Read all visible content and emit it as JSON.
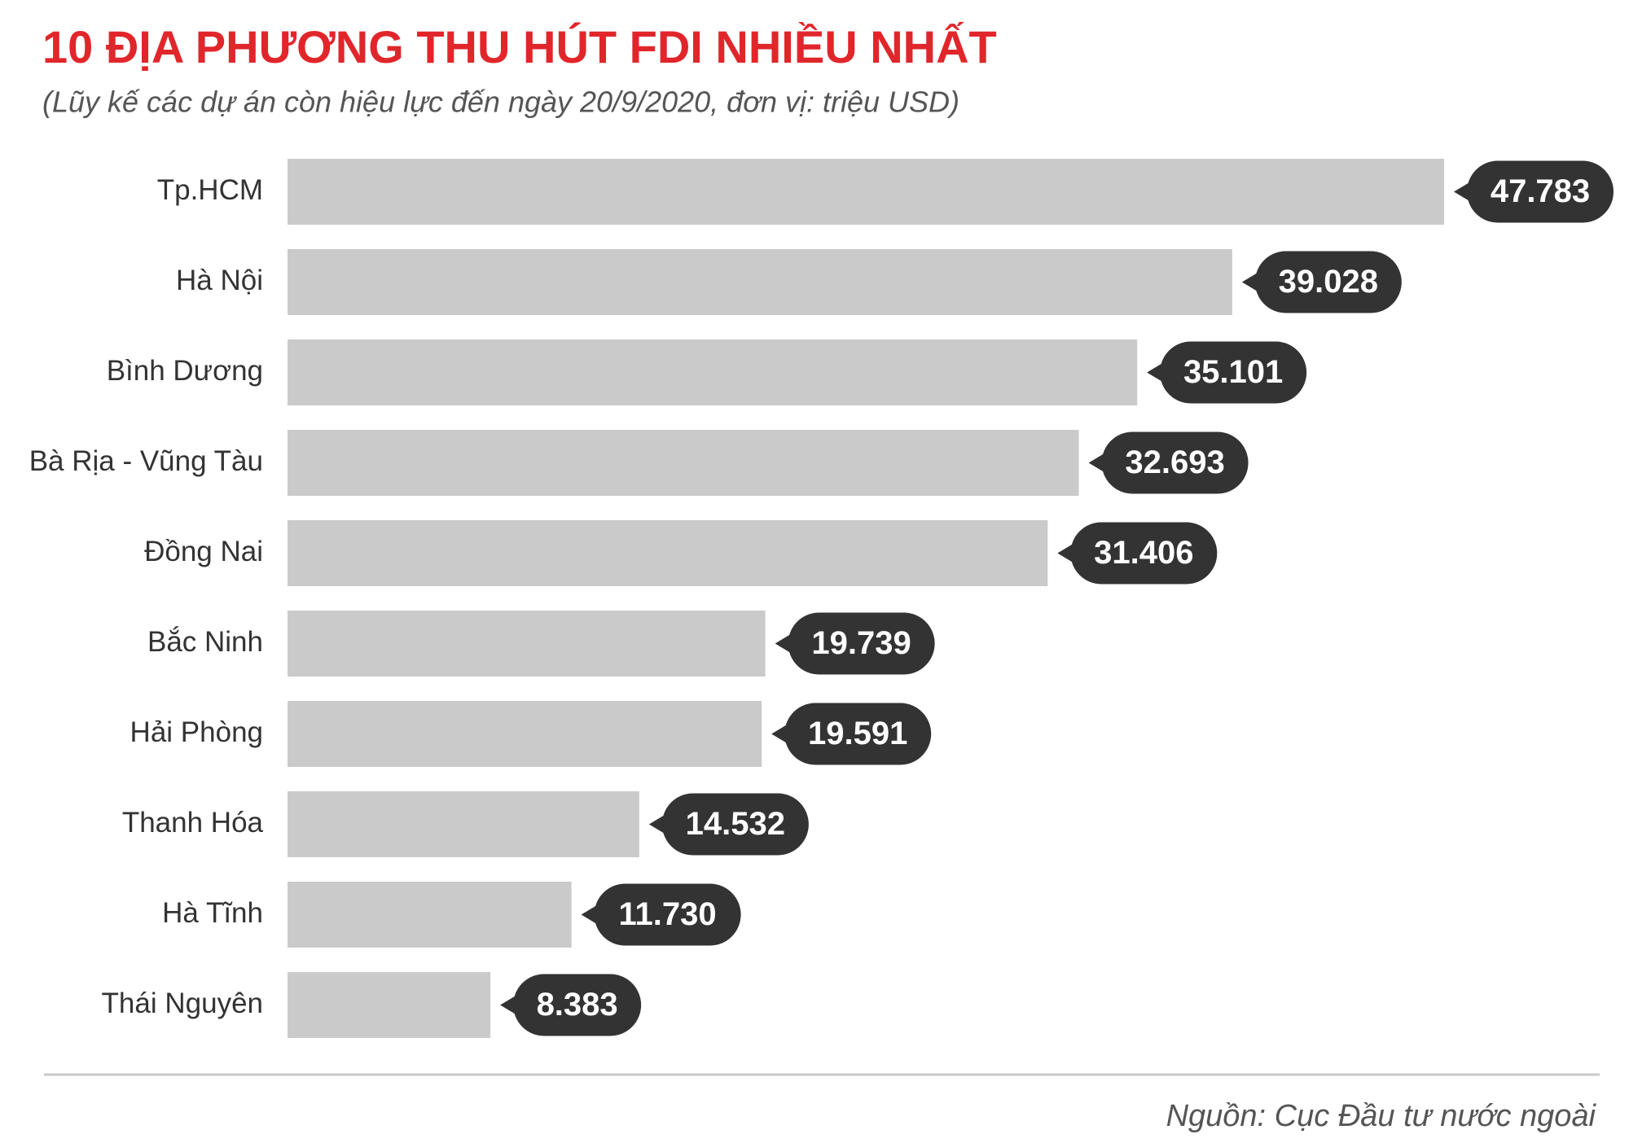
{
  "chart_data": {
    "type": "bar",
    "orientation": "horizontal",
    "title": "10 ĐỊA PHƯƠNG THU HÚT FDI NHIỀU NHẤT",
    "subtitle": "(Lũy kế các dự án còn hiệu lực đến ngày 20/9/2020, đơn vị: triệu USD)",
    "source": "Nguồn: Cục Đầu tư nước ngoài",
    "categories": [
      "Tp.HCM",
      "Hà Nội",
      "Bình Dương",
      "Bà Rịa - Vũng Tàu",
      "Đồng Nai",
      "Bắc Ninh",
      "Hải Phòng",
      "Thanh Hóa",
      "Hà Tĩnh",
      "Thái Nguyên"
    ],
    "values": [
      47783,
      39028,
      35101,
      32693,
      31406,
      19739,
      19591,
      14532,
      11730,
      8383
    ],
    "value_labels": [
      "47.783",
      "39.028",
      "35.101",
      "32.693",
      "31.406",
      "19.739",
      "19.591",
      "14.532",
      "11.730",
      "8.383"
    ],
    "color": "#cbcacb",
    "label_color": "#333333"
  }
}
